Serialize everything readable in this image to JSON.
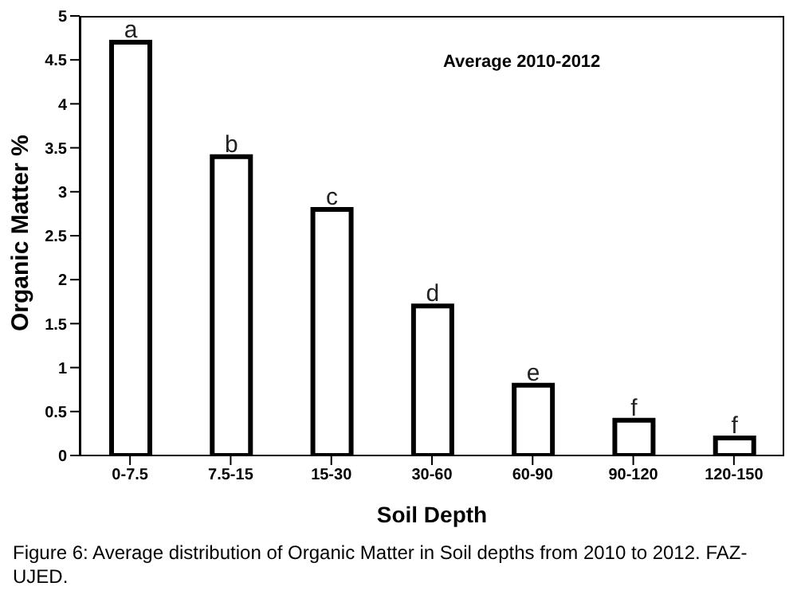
{
  "chart_data": {
    "type": "bar",
    "xlabel": "Soil Depth",
    "ylabel": "Organic Matter %",
    "categories": [
      "0-7.5",
      "7.5-15",
      "15-30",
      "30-60",
      "60-90",
      "90-120",
      "120-150"
    ],
    "values": [
      4.7,
      3.4,
      2.8,
      1.7,
      0.8,
      0.4,
      0.2
    ],
    "value_labels": [
      "a",
      "b",
      "c",
      "d",
      "e",
      "f",
      "f"
    ],
    "color": "#ffffff",
    "ylim": [
      0,
      5
    ],
    "yticks": [
      0,
      0.5,
      1,
      1.5,
      2,
      2.5,
      3,
      3.5,
      4,
      4.5,
      5
    ],
    "grid": false,
    "legend": false,
    "annotations": [
      "Average 2010-2012",
      "Figure 6: Average distribution of Organic Matter in Soil depths from 2010 to 2012. FAZ-UJED."
    ]
  }
}
